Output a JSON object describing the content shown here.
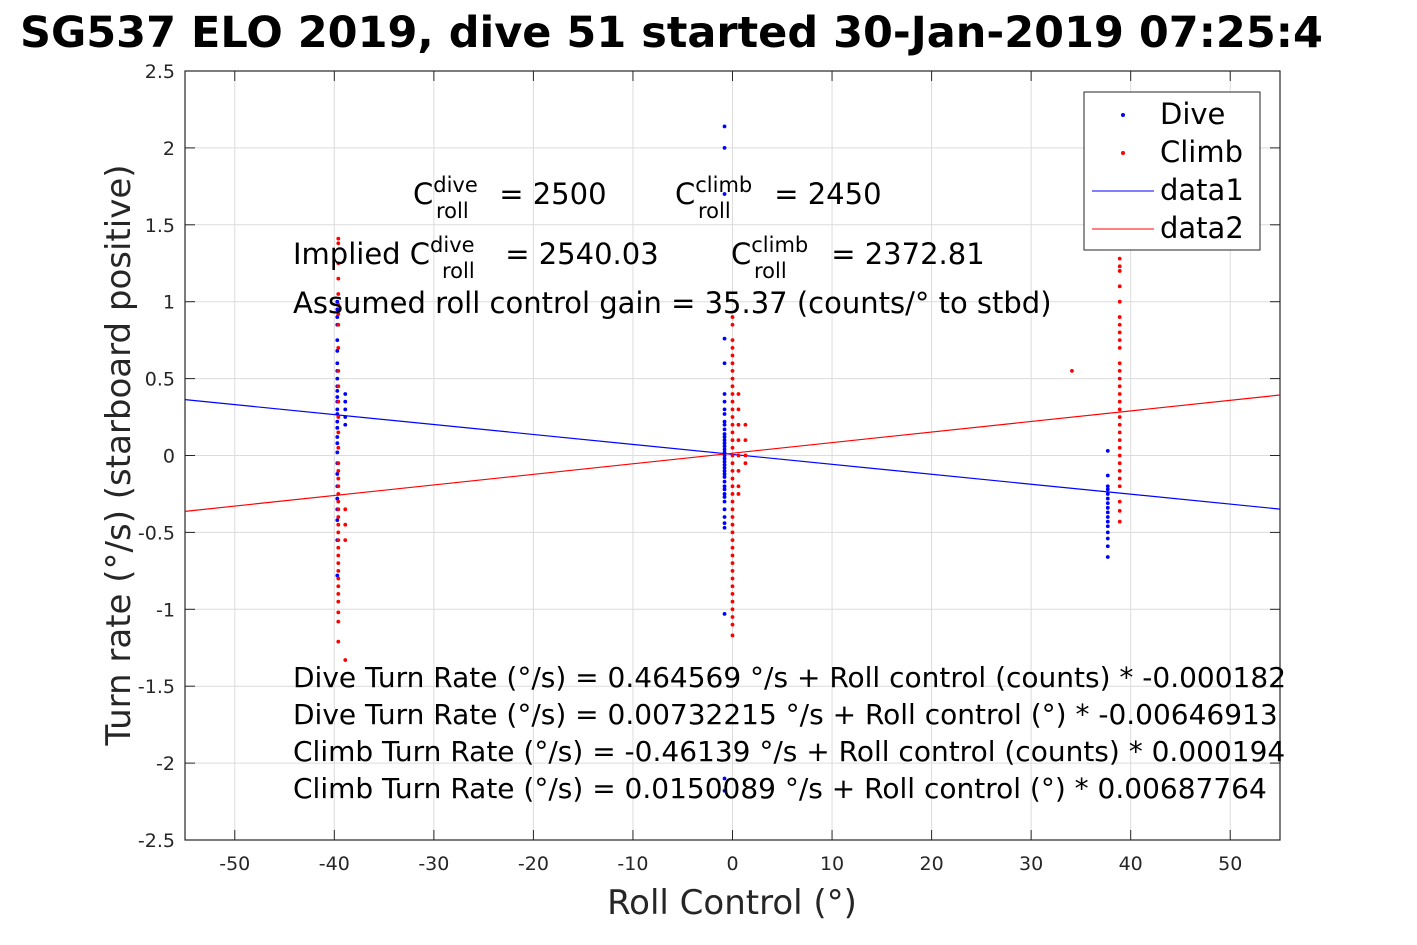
{
  "chart_data": {
    "type": "scatter",
    "title": "SG537 ELO 2019, dive 51 started 30-Jan-2019 07:25:4",
    "xlabel": "Roll Control (°)",
    "ylabel": "Turn rate (°/s) (starboard positive)",
    "xlim": [
      -55,
      55
    ],
    "ylim": [
      -2.5,
      2.5
    ],
    "xticks": [
      "-50",
      "-40",
      "-30",
      "-20",
      "-10",
      "0",
      "10",
      "20",
      "30",
      "40",
      "50"
    ],
    "yticks": [
      "2.5",
      "2",
      "1.5",
      "1",
      "0.5",
      "0",
      "-0.5",
      "-1",
      "-1.5",
      "-2",
      "-2.5"
    ],
    "grid": true,
    "legend_position": "top-right",
    "legend": [
      "Dive",
      "Climb",
      "data1",
      "data2"
    ],
    "colors": {
      "dive": "#0000ff",
      "climb": "#ff0000"
    },
    "series": [
      {
        "name": "Dive",
        "style": "points",
        "color": "#0000ff",
        "clusters": [
          {
            "x": -39.7,
            "y_values": [
              1.0,
              0.95,
              0.9,
              0.85,
              0.75,
              0.68,
              0.6,
              0.55,
              0.5,
              0.45,
              0.42,
              0.38,
              0.35,
              0.3,
              0.27,
              0.22,
              0.18,
              0.12,
              0.08,
              0.02,
              -0.05,
              -0.12,
              -0.2,
              -0.28,
              -0.35,
              -0.42,
              -0.55,
              -0.78
            ]
          },
          {
            "x": -38.9,
            "y_values": [
              0.4,
              0.35,
              0.3,
              0.25,
              0.2
            ]
          },
          {
            "x": -0.8,
            "y_values": [
              2.14,
              2.0,
              1.7,
              0.76,
              0.6,
              0.4,
              0.35,
              0.3,
              0.27,
              0.22,
              0.2,
              0.17,
              0.14,
              0.12,
              0.1,
              0.08,
              0.06,
              0.04,
              0.02,
              0.0,
              -0.02,
              -0.04,
              -0.06,
              -0.08,
              -0.1,
              -0.12,
              -0.14,
              -0.17,
              -0.2,
              -0.22,
              -0.25,
              -0.27,
              -0.3,
              -0.35,
              -0.4,
              -0.44,
              -0.47,
              -1.03,
              -2.1,
              -2.18
            ]
          },
          {
            "x": 37.7,
            "y_values": [
              0.03,
              -0.13,
              -0.2,
              -0.22,
              -0.25,
              -0.28,
              -0.31,
              -0.34,
              -0.37,
              -0.4,
              -0.43,
              -0.46,
              -0.5,
              -0.54,
              -0.59,
              -0.66
            ]
          }
        ]
      },
      {
        "name": "Climb",
        "style": "points",
        "color": "#ff0000",
        "clusters": [
          {
            "x": -39.6,
            "y_values": [
              1.41,
              1.38,
              1.25,
              1.15,
              1.05,
              0.98,
              0.92,
              0.85,
              0.7,
              0.55,
              0.45,
              0.35,
              0.25,
              0.15,
              0.05,
              -0.05,
              -0.1,
              -0.15,
              -0.2,
              -0.25,
              -0.3,
              -0.35,
              -0.4,
              -0.45,
              -0.5,
              -0.55,
              -0.6,
              -0.65,
              -0.7,
              -0.75,
              -0.8,
              -0.85,
              -0.9,
              -0.95,
              -1.02,
              -1.08,
              -1.21
            ]
          },
          {
            "x": -38.9,
            "y_values": [
              -0.35,
              -0.45,
              -0.55,
              -1.33
            ]
          },
          {
            "x": 0.0,
            "y_values": [
              0.9,
              0.85,
              0.75,
              0.7,
              0.65,
              0.6,
              0.55,
              0.5,
              0.45,
              0.4,
              0.35,
              0.3,
              0.25,
              0.2,
              0.15,
              0.1,
              0.05,
              0.0,
              -0.05,
              -0.1,
              -0.15,
              -0.2,
              -0.25,
              -0.3,
              -0.35,
              -0.4,
              -0.45,
              -0.5,
              -0.55,
              -0.6,
              -0.65,
              -0.7,
              -0.75,
              -0.8,
              -0.85,
              -0.9,
              -0.95,
              -1.0,
              -1.05,
              -1.1,
              -1.17
            ]
          },
          {
            "x": 0.6,
            "y_values": [
              0.4,
              0.3,
              0.2,
              0.1,
              0.0,
              -0.1,
              -0.2,
              -0.25
            ]
          },
          {
            "x": 1.3,
            "y_values": [
              0.2,
              0.1,
              0.0,
              -0.05
            ]
          },
          {
            "x": 34.1,
            "y_values": [
              0.55
            ]
          },
          {
            "x": 38.9,
            "y_values": [
              1.28,
              1.23,
              1.2,
              1.1,
              1.0,
              0.9,
              0.85,
              0.8,
              0.75,
              0.7,
              0.6,
              0.55,
              0.5,
              0.45,
              0.4,
              0.35,
              0.3,
              0.25,
              0.2,
              0.15,
              0.1,
              0.05,
              0.0,
              -0.05,
              -0.1,
              -0.15,
              -0.2,
              -0.3,
              -0.36,
              -0.43
            ]
          }
        ]
      },
      {
        "name": "data1",
        "style": "line",
        "color": "#0000ff",
        "intercept": 0.00732215,
        "slope": -0.00646913
      },
      {
        "name": "data2",
        "style": "line",
        "color": "#ff0000",
        "intercept": 0.0150089,
        "slope": 0.00687764
      }
    ],
    "annotations": {
      "c_roll_dive": {
        "base": "C",
        "sup": "dive",
        "sub": "roll",
        "rest": " = 2500"
      },
      "c_roll_climb": {
        "base": "C",
        "sup": "climb",
        "sub": "roll",
        "rest": " = 2450"
      },
      "implied_dive": {
        "prefix": "Implied C",
        "sup": "dive",
        "sub": "roll",
        "rest": " = 2540.03"
      },
      "implied_climb": {
        "base": "C",
        "sup": "climb",
        "sub": "roll",
        "rest": " = 2372.81"
      },
      "gain": "Assumed roll control gain = 35.37 (counts/° to stbd)",
      "equations": [
        "Dive Turn Rate (°/s) = 0.464569 °/s + Roll control (counts) * -0.000182",
        "Dive Turn Rate (°/s) = 0.00732215 °/s + Roll control (°) * -0.00646913",
        "Climb Turn Rate (°/s) = -0.46139 °/s + Roll control (counts) * 0.000194",
        "Climb Turn Rate (°/s) = 0.0150089 °/s + Roll control (°) * 0.00687764"
      ]
    }
  }
}
